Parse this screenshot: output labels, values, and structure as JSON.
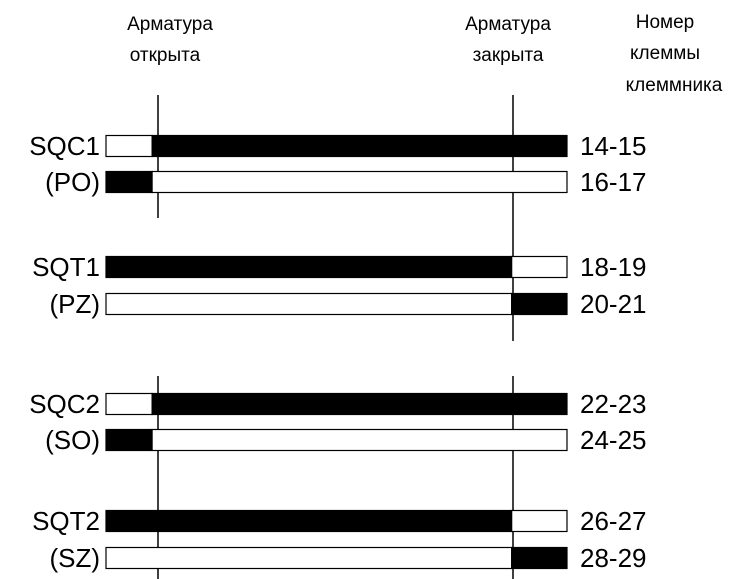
{
  "headers": {
    "open": [
      "Арматура",
      "открыта"
    ],
    "closed": [
      "Арматура",
      "закрыта"
    ],
    "terminal": [
      "Номер",
      "клеммы",
      "клеммника"
    ]
  },
  "positions": {
    "start": 0,
    "open": 0.1,
    "closed": 0.88,
    "end": 1
  },
  "colors": {
    "ink": "#000000",
    "paper": "#ffffff"
  },
  "groups": [
    {
      "rows": [
        {
          "name": "SQC1",
          "terminals": "14-15",
          "segments": [
            {
              "filled": false,
              "from": 0,
              "to": 0.1
            },
            {
              "filled": true,
              "from": 0.1,
              "to": 1
            }
          ]
        },
        {
          "name": "(PO)",
          "terminals": "16-17",
          "segments": [
            {
              "filled": true,
              "from": 0,
              "to": 0.1
            },
            {
              "filled": false,
              "from": 0.1,
              "to": 1
            }
          ]
        }
      ]
    },
    {
      "rows": [
        {
          "name": "SQT1",
          "terminals": "18-19",
          "segments": [
            {
              "filled": true,
              "from": 0,
              "to": 0.88
            },
            {
              "filled": false,
              "from": 0.88,
              "to": 1
            }
          ]
        },
        {
          "name": "(PZ)",
          "terminals": "20-21",
          "segments": [
            {
              "filled": false,
              "from": 0,
              "to": 0.88
            },
            {
              "filled": true,
              "from": 0.88,
              "to": 1
            }
          ]
        }
      ]
    },
    {
      "rows": [
        {
          "name": "SQC2",
          "terminals": "22-23",
          "segments": [
            {
              "filled": false,
              "from": 0,
              "to": 0.1
            },
            {
              "filled": true,
              "from": 0.1,
              "to": 1
            }
          ]
        },
        {
          "name": "(SO)",
          "terminals": "24-25",
          "segments": [
            {
              "filled": true,
              "from": 0,
              "to": 0.1
            },
            {
              "filled": false,
              "from": 0.1,
              "to": 1
            }
          ]
        }
      ]
    },
    {
      "rows": [
        {
          "name": "SQT2",
          "terminals": "26-27",
          "segments": [
            {
              "filled": true,
              "from": 0,
              "to": 0.88
            },
            {
              "filled": false,
              "from": 0.88,
              "to": 1
            }
          ]
        },
        {
          "name": "(SZ)",
          "terminals": "28-29",
          "segments": [
            {
              "filled": false,
              "from": 0,
              "to": 0.88
            },
            {
              "filled": true,
              "from": 0.88,
              "to": 1
            }
          ]
        }
      ]
    }
  ]
}
